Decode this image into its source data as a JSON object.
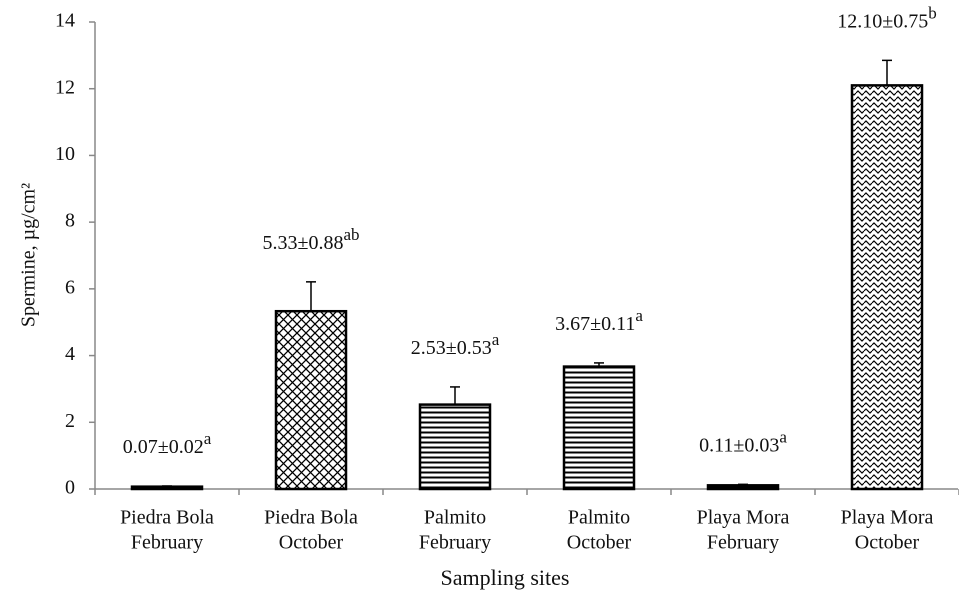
{
  "chart_data": {
    "type": "bar",
    "y_label": "Spermine, µg/cm²",
    "x_label": "Sampling sites",
    "categories": [
      [
        "Piedra Bola",
        "February"
      ],
      [
        "Piedra Bola",
        "October"
      ],
      [
        "Palmito",
        "February"
      ],
      [
        "Palmito",
        "October"
      ],
      [
        "Playa Mora",
        "February"
      ],
      [
        "Playa Mora",
        "October"
      ]
    ],
    "values": [
      0.07,
      5.33,
      2.53,
      3.67,
      0.11,
      12.1
    ],
    "errors": [
      0.02,
      0.88,
      0.53,
      0.11,
      0.03,
      0.75
    ],
    "value_labels": [
      "0.07±0.02",
      "5.33±0.88",
      "2.53±0.53",
      "3.67±0.11",
      "0.11±0.03",
      "12.10±0.75"
    ],
    "letters": [
      "a",
      "ab",
      "a",
      "a",
      "a",
      "b"
    ],
    "patterns": [
      "hlines",
      "crosshatch",
      "hlines",
      "hlines",
      "hlines",
      "waves"
    ],
    "color": "#000000",
    "ylim": [
      0,
      14
    ],
    "yticks": [
      0,
      2,
      4,
      6,
      8,
      10,
      12,
      14
    ],
    "grid": false
  }
}
